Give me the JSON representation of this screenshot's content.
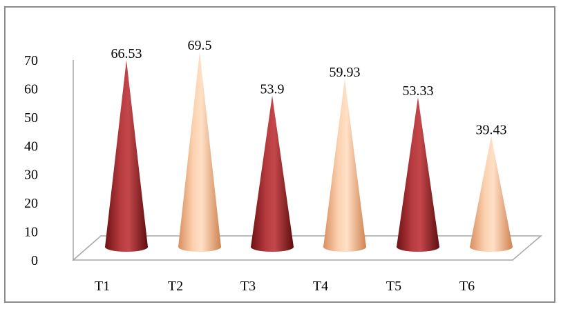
{
  "chart_data": {
    "type": "bar",
    "shape": "cone",
    "categories": [
      "T1",
      "T2",
      "T3",
      "T4",
      "T5",
      "T6"
    ],
    "values": [
      66.53,
      69.5,
      53.9,
      59.93,
      53.33,
      39.43
    ],
    "value_labels": [
      "66.53",
      "69.5",
      "53.9",
      "59.93",
      "53.33",
      "39.43"
    ],
    "y_ticks": [
      "0",
      "10",
      "20",
      "30",
      "40",
      "50",
      "60",
      "70"
    ],
    "ylim": [
      0,
      70
    ],
    "grid": false,
    "legend": "none",
    "title": "",
    "xlabel": "",
    "ylabel": "",
    "colors": {
      "odd": "#a3282c",
      "even": "#f4b98f",
      "floor_stroke": "#a6a6a6",
      "frame": "#8c8c8c"
    }
  }
}
